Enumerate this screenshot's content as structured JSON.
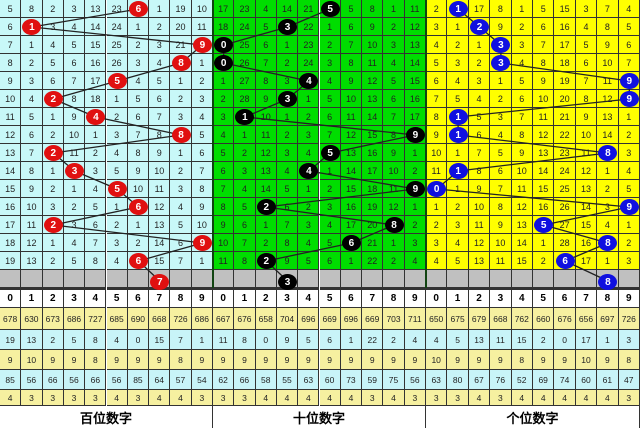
{
  "chart_data": {
    "type": "table",
    "panels": [
      {
        "label": "百位数字",
        "cell_color": "#c8f8f8",
        "ball_color": "#e01010",
        "header": [
          "0",
          "1",
          "2",
          "3",
          "4",
          "5",
          "6",
          "7",
          "8",
          "9"
        ],
        "rows": [
          [
            5,
            8,
            2,
            3,
            13,
            23,
            6,
            1,
            19,
            10
          ],
          [
            6,
            1,
            3,
            4,
            14,
            24,
            1,
            2,
            20,
            11
          ],
          [
            7,
            1,
            4,
            5,
            15,
            25,
            2,
            3,
            21,
            9
          ],
          [
            8,
            2,
            5,
            6,
            16,
            26,
            3,
            4,
            8,
            1
          ],
          [
            9,
            3,
            6,
            7,
            17,
            5,
            4,
            5,
            1,
            2
          ],
          [
            10,
            4,
            2,
            8,
            18,
            1,
            5,
            6,
            2,
            3
          ],
          [
            11,
            5,
            1,
            9,
            4,
            2,
            6,
            7,
            3,
            4
          ],
          [
            12,
            6,
            2,
            10,
            1,
            3,
            7,
            8,
            8,
            5
          ],
          [
            13,
            7,
            2,
            11,
            2,
            4,
            8,
            9,
            1,
            6
          ],
          [
            14,
            8,
            1,
            3,
            3,
            5,
            9,
            10,
            2,
            7
          ],
          [
            15,
            9,
            2,
            1,
            4,
            5,
            10,
            11,
            3,
            8
          ],
          [
            16,
            10,
            3,
            2,
            5,
            1,
            6,
            12,
            4,
            9
          ],
          [
            17,
            11,
            2,
            3,
            6,
            2,
            1,
            13,
            5,
            10
          ],
          [
            18,
            12,
            1,
            4,
            7,
            3,
            2,
            14,
            6,
            9
          ],
          [
            19,
            13,
            2,
            5,
            8,
            4,
            6,
            15,
            7,
            1
          ]
        ],
        "hits": [
          6,
          1,
          9,
          8,
          5,
          2,
          4,
          8,
          2,
          3,
          5,
          6,
          2,
          9,
          6
        ],
        "next_hit": 7,
        "stats": [
          [
            "678",
            "630",
            "673",
            "686",
            "727",
            "685",
            "690",
            "668",
            "726",
            "686"
          ],
          [
            "19",
            "13",
            "2",
            "5",
            "8",
            "4",
            "0",
            "15",
            "7",
            "1"
          ],
          [
            "9",
            "10",
            "9",
            "9",
            "8",
            "9",
            "9",
            "9",
            "8",
            "9"
          ],
          [
            "85",
            "56",
            "66",
            "56",
            "66",
            "56",
            "85",
            "64",
            "57",
            "54"
          ],
          [
            "4",
            "3",
            "3",
            "3",
            "3",
            "4",
            "3",
            "4",
            "4",
            "3"
          ]
        ]
      },
      {
        "label": "十位数字",
        "cell_color": "#00dd00",
        "ball_color": "#000000",
        "header": [
          "0",
          "1",
          "2",
          "3",
          "4",
          "5",
          "6",
          "7",
          "8",
          "9"
        ],
        "rows": [
          [
            17,
            23,
            4,
            14,
            21,
            5,
            5,
            8,
            1,
            11
          ],
          [
            18,
            24,
            5,
            3,
            22,
            1,
            6,
            9,
            2,
            12
          ],
          [
            0,
            25,
            6,
            1,
            23,
            2,
            7,
            10,
            3,
            13
          ],
          [
            0,
            26,
            7,
            2,
            24,
            3,
            8,
            11,
            4,
            14
          ],
          [
            1,
            27,
            8,
            3,
            4,
            4,
            9,
            12,
            5,
            15
          ],
          [
            2,
            28,
            9,
            3,
            1,
            5,
            10,
            13,
            6,
            16
          ],
          [
            3,
            1,
            10,
            1,
            2,
            6,
            11,
            14,
            7,
            17
          ],
          [
            4,
            1,
            11,
            2,
            3,
            7,
            12,
            15,
            8,
            9
          ],
          [
            5,
            2,
            12,
            3,
            4,
            5,
            13,
            16,
            9,
            1
          ],
          [
            6,
            3,
            13,
            4,
            4,
            1,
            14,
            17,
            10,
            2
          ],
          [
            7,
            4,
            14,
            5,
            1,
            2,
            15,
            18,
            11,
            9
          ],
          [
            8,
            5,
            2,
            6,
            2,
            3,
            16,
            19,
            12,
            1
          ],
          [
            9,
            6,
            1,
            7,
            3,
            4,
            17,
            20,
            8,
            2
          ],
          [
            10,
            7,
            2,
            8,
            4,
            5,
            6,
            21,
            1,
            3
          ],
          [
            11,
            8,
            2,
            9,
            5,
            6,
            1,
            22,
            2,
            4
          ]
        ],
        "hits": [
          5,
          3,
          0,
          0,
          4,
          3,
          1,
          9,
          5,
          4,
          9,
          2,
          8,
          6,
          2
        ],
        "next_hit": 3,
        "stats": [
          [
            "667",
            "676",
            "658",
            "704",
            "696",
            "669",
            "696",
            "669",
            "703",
            "711"
          ],
          [
            "11",
            "8",
            "0",
            "9",
            "5",
            "6",
            "1",
            "22",
            "2",
            "4"
          ],
          [
            "9",
            "9",
            "9",
            "9",
            "9",
            "9",
            "9",
            "9",
            "9",
            "9"
          ],
          [
            "62",
            "66",
            "58",
            "55",
            "63",
            "60",
            "73",
            "59",
            "75",
            "56"
          ],
          [
            "3",
            "3",
            "4",
            "4",
            "4",
            "4",
            "4",
            "3",
            "4",
            "3"
          ]
        ]
      },
      {
        "label": "个位数字",
        "cell_color": "#ffff00",
        "ball_color": "#1010e0",
        "header": [
          "0",
          "1",
          "2",
          "3",
          "4",
          "5",
          "6",
          "7",
          "8",
          "9"
        ],
        "rows": [
          [
            2,
            1,
            17,
            8,
            1,
            5,
            15,
            3,
            7,
            4
          ],
          [
            3,
            1,
            2,
            9,
            2,
            6,
            16,
            4,
            8,
            5
          ],
          [
            4,
            2,
            1,
            3,
            3,
            7,
            17,
            5,
            9,
            6
          ],
          [
            5,
            3,
            2,
            3,
            4,
            8,
            18,
            6,
            10,
            7
          ],
          [
            6,
            4,
            3,
            1,
            5,
            9,
            19,
            7,
            11,
            9
          ],
          [
            7,
            5,
            4,
            2,
            6,
            10,
            20,
            8,
            12,
            9
          ],
          [
            8,
            1,
            5,
            3,
            7,
            11,
            21,
            9,
            13,
            1
          ],
          [
            9,
            1,
            6,
            4,
            8,
            12,
            22,
            10,
            14,
            2
          ],
          [
            10,
            1,
            7,
            5,
            9,
            13,
            23,
            11,
            8,
            3
          ],
          [
            11,
            1,
            8,
            6,
            10,
            14,
            24,
            12,
            1,
            4
          ],
          [
            0,
            1,
            9,
            7,
            11,
            15,
            25,
            13,
            2,
            5
          ],
          [
            1,
            2,
            10,
            8,
            12,
            16,
            26,
            14,
            3,
            9
          ],
          [
            2,
            3,
            11,
            9,
            13,
            5,
            27,
            15,
            4,
            1
          ],
          [
            3,
            4,
            12,
            10,
            14,
            1,
            28,
            16,
            8,
            2
          ],
          [
            4,
            5,
            13,
            11,
            15,
            2,
            6,
            17,
            1,
            3
          ]
        ],
        "hits": [
          1,
          2,
          3,
          3,
          9,
          9,
          1,
          1,
          8,
          1,
          0,
          9,
          5,
          8,
          6
        ],
        "next_hit": 8,
        "stats": [
          [
            "650",
            "675",
            "679",
            "668",
            "762",
            "660",
            "676",
            "656",
            "697",
            "726"
          ],
          [
            "4",
            "5",
            "13",
            "11",
            "15",
            "2",
            "0",
            "17",
            "1",
            "3"
          ],
          [
            "10",
            "9",
            "9",
            "9",
            "8",
            "9",
            "9",
            "10",
            "9",
            "8"
          ],
          [
            "63",
            "80",
            "67",
            "76",
            "52",
            "69",
            "74",
            "60",
            "61",
            "47"
          ],
          [
            "3",
            "3",
            "4",
            "3",
            "4",
            "4",
            "4",
            "4",
            "4",
            "3"
          ]
        ]
      }
    ]
  }
}
